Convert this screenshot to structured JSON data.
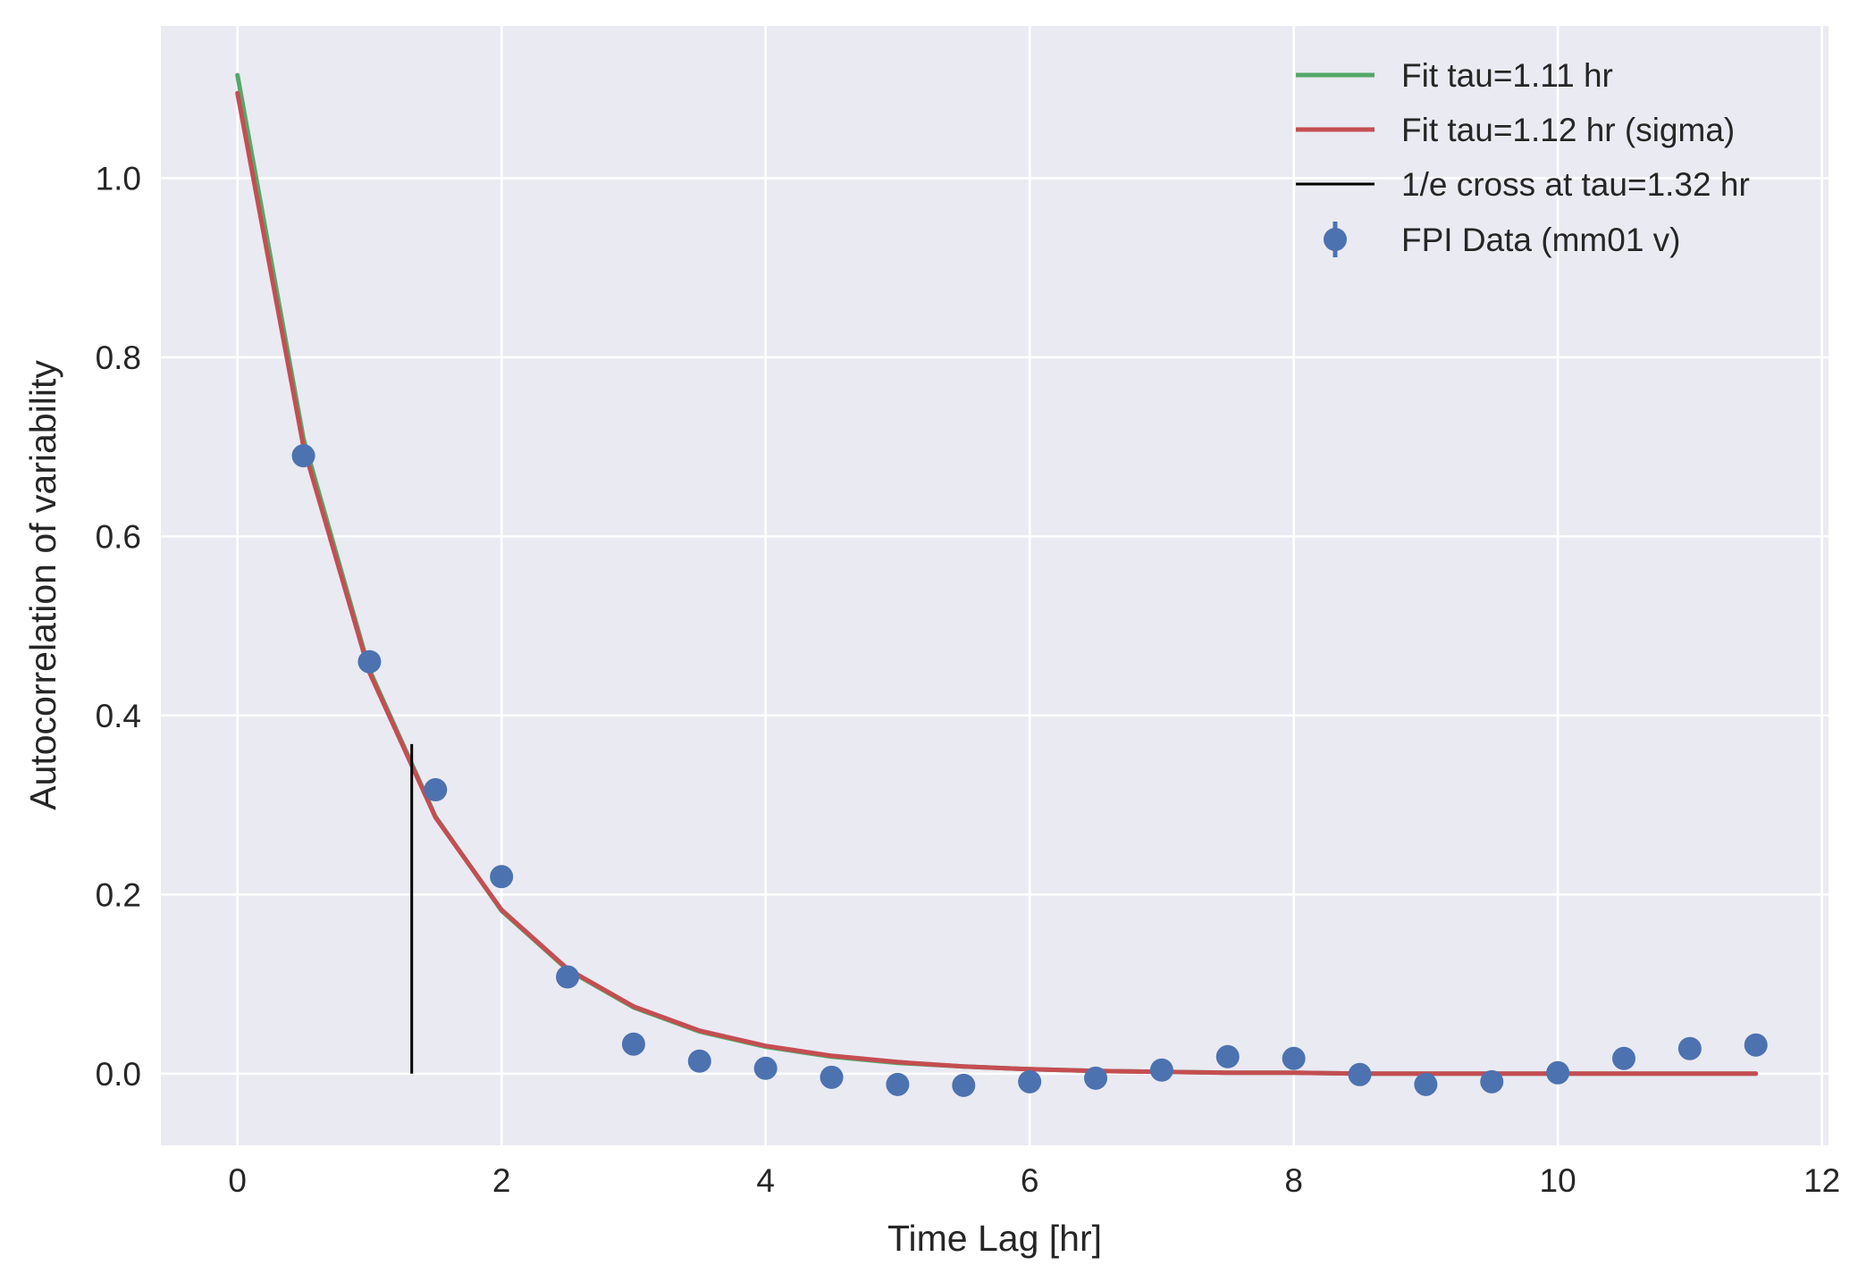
{
  "chart_data": {
    "type": "line",
    "title": "",
    "xlabel": "Time Lag [hr]",
    "ylabel": "Autocorrelation of variability",
    "xlim": [
      -0.58,
      12.05
    ],
    "ylim": [
      -0.08,
      1.17
    ],
    "xticks": [
      0,
      2,
      4,
      6,
      8,
      10,
      12
    ],
    "xtick_labels": [
      "0",
      "2",
      "4",
      "6",
      "8",
      "10",
      "12"
    ],
    "yticks": [
      0.0,
      0.2,
      0.4,
      0.6,
      0.8,
      1.0
    ],
    "ytick_labels": [
      "0.0",
      "0.2",
      "0.4",
      "0.6",
      "0.8",
      "1.0"
    ],
    "grid": true,
    "legend_position": "top-right",
    "colors": {
      "background": "#eaeaf2",
      "grid": "#ffffff",
      "fit1": "#55a868",
      "fit2": "#c44e52",
      "cross": "#000000",
      "data": "#4c72b0"
    },
    "series": [
      {
        "name": "Fit tau=1.11 hr",
        "kind": "line",
        "color": "#55a868",
        "x": [
          0,
          0.5,
          1,
          1.5,
          2,
          2.5,
          3,
          3.5,
          4,
          4.5,
          5,
          5.5,
          6,
          6.5,
          7,
          7.5,
          8,
          8.5,
          9,
          9.5,
          10,
          10.5,
          11,
          11.5
        ],
        "y": [
          1.115,
          0.709,
          0.451,
          0.287,
          0.182,
          0.116,
          0.074,
          0.047,
          0.03,
          0.019,
          0.012,
          0.008,
          0.005,
          0.003,
          0.002,
          0.001,
          0.001,
          0.0,
          0.0,
          0.0,
          0.0,
          0.0,
          0.0,
          0.0
        ]
      },
      {
        "name": "Fit tau=1.12 hr (sigma)",
        "kind": "line",
        "color": "#c44e52",
        "x": [
          0,
          0.5,
          1,
          1.5,
          2,
          2.5,
          3,
          3.5,
          4,
          4.5,
          5,
          5.5,
          6,
          6.5,
          7,
          7.5,
          8,
          8.5,
          9,
          9.5,
          10,
          10.5,
          11,
          11.5
        ],
        "y": [
          1.095,
          0.7,
          0.448,
          0.286,
          0.183,
          0.117,
          0.075,
          0.048,
          0.031,
          0.02,
          0.013,
          0.008,
          0.005,
          0.003,
          0.002,
          0.001,
          0.001,
          0.0,
          0.0,
          0.0,
          0.0,
          0.0,
          0.0,
          0.0
        ]
      },
      {
        "name": "1/e cross at tau=1.32 hr",
        "kind": "vline",
        "color": "#000000",
        "x": 1.32,
        "y_range": [
          0.0,
          0.368
        ]
      },
      {
        "name": "FPI Data (mm01 v)",
        "kind": "errorbar",
        "color": "#4c72b0",
        "x": [
          0.5,
          1,
          1.5,
          2,
          2.5,
          3,
          3.5,
          4,
          4.5,
          5,
          5.5,
          6,
          6.5,
          7,
          7.5,
          8,
          8.5,
          9,
          9.5,
          10,
          10.5,
          11,
          11.5
        ],
        "y": [
          0.69,
          0.46,
          0.317,
          0.22,
          0.108,
          0.033,
          0.014,
          0.006,
          -0.004,
          -0.012,
          -0.013,
          -0.009,
          -0.005,
          0.004,
          0.019,
          0.017,
          -0.001,
          -0.012,
          -0.009,
          0.001,
          0.017,
          0.028,
          0.032
        ]
      }
    ]
  }
}
